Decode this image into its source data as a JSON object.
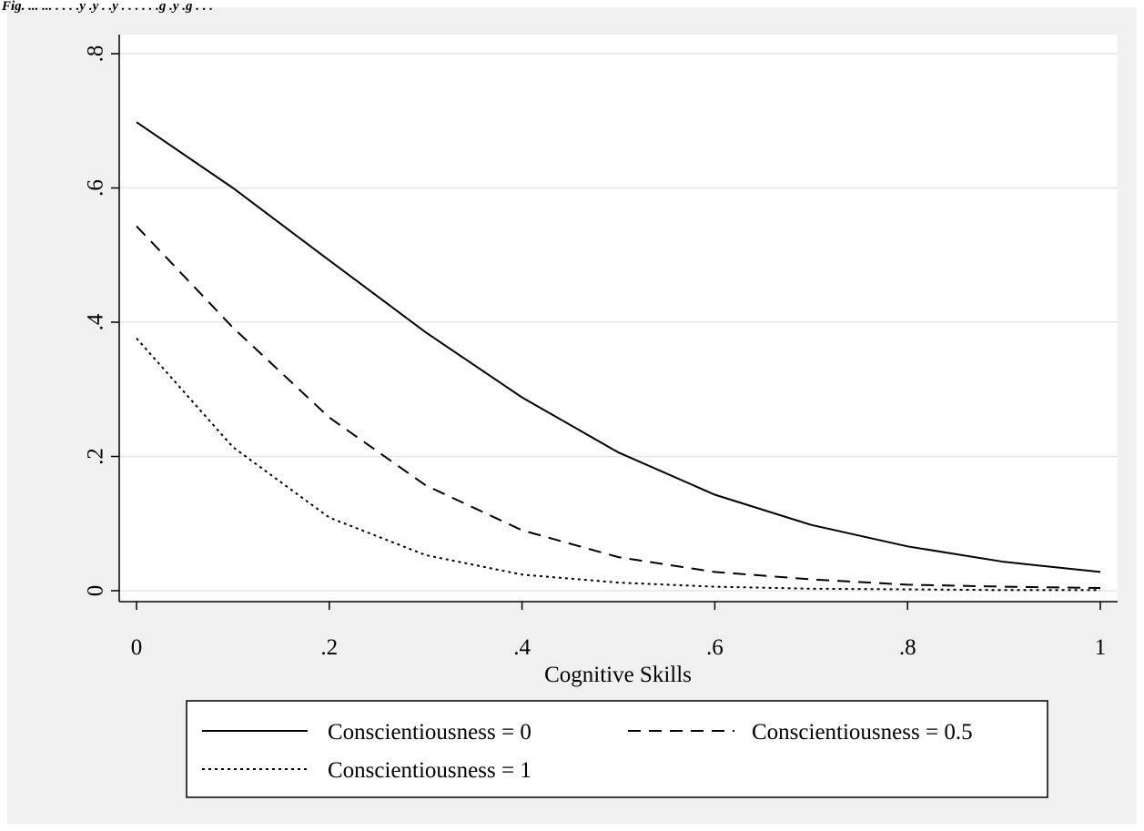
{
  "header_fragment": "Fig. ... ... . . . .y .y . .y . . . . . .g .y .g . . .",
  "chart_data": {
    "type": "line",
    "title": "",
    "xlabel": "Cognitive Skills",
    "ylabel": "",
    "xlim": [
      0,
      1
    ],
    "ylim": [
      0,
      0.8
    ],
    "x_ticks": [
      0,
      0.2,
      0.4,
      0.6,
      0.8,
      1
    ],
    "x_tick_labels": [
      "0",
      ".2",
      ".4",
      ".6",
      ".8",
      "1"
    ],
    "y_ticks": [
      0,
      0.2,
      0.4,
      0.6,
      0.8
    ],
    "y_tick_labels": [
      "0",
      ".2",
      ".4",
      ".6",
      ".8"
    ],
    "grid": "horizontal",
    "legend_position": "bottom",
    "x": [
      0,
      0.1,
      0.2,
      0.3,
      0.4,
      0.5,
      0.6,
      0.7,
      0.8,
      0.9,
      1.0
    ],
    "series": [
      {
        "name": "Conscientiousness = 0",
        "style": "solid",
        "values": [
          0.698,
          0.6,
          0.492,
          0.385,
          0.288,
          0.206,
          0.143,
          0.098,
          0.066,
          0.043,
          0.028
        ]
      },
      {
        "name": "Conscientiousness = 0.5",
        "style": "dashed",
        "values": [
          0.543,
          0.392,
          0.258,
          0.157,
          0.09,
          0.05,
          0.028,
          0.017,
          0.009,
          0.006,
          0.004
        ]
      },
      {
        "name": "Conscientiousness = 1",
        "style": "dotted",
        "values": [
          0.376,
          0.214,
          0.109,
          0.053,
          0.024,
          0.012,
          0.006,
          0.003,
          0.002,
          0.001,
          0.001
        ]
      }
    ]
  },
  "colors": {
    "outer_background": "#f0f0f0",
    "plot_background": "#ffffff",
    "grid": "#e6e6e6",
    "ink": "#000000"
  }
}
